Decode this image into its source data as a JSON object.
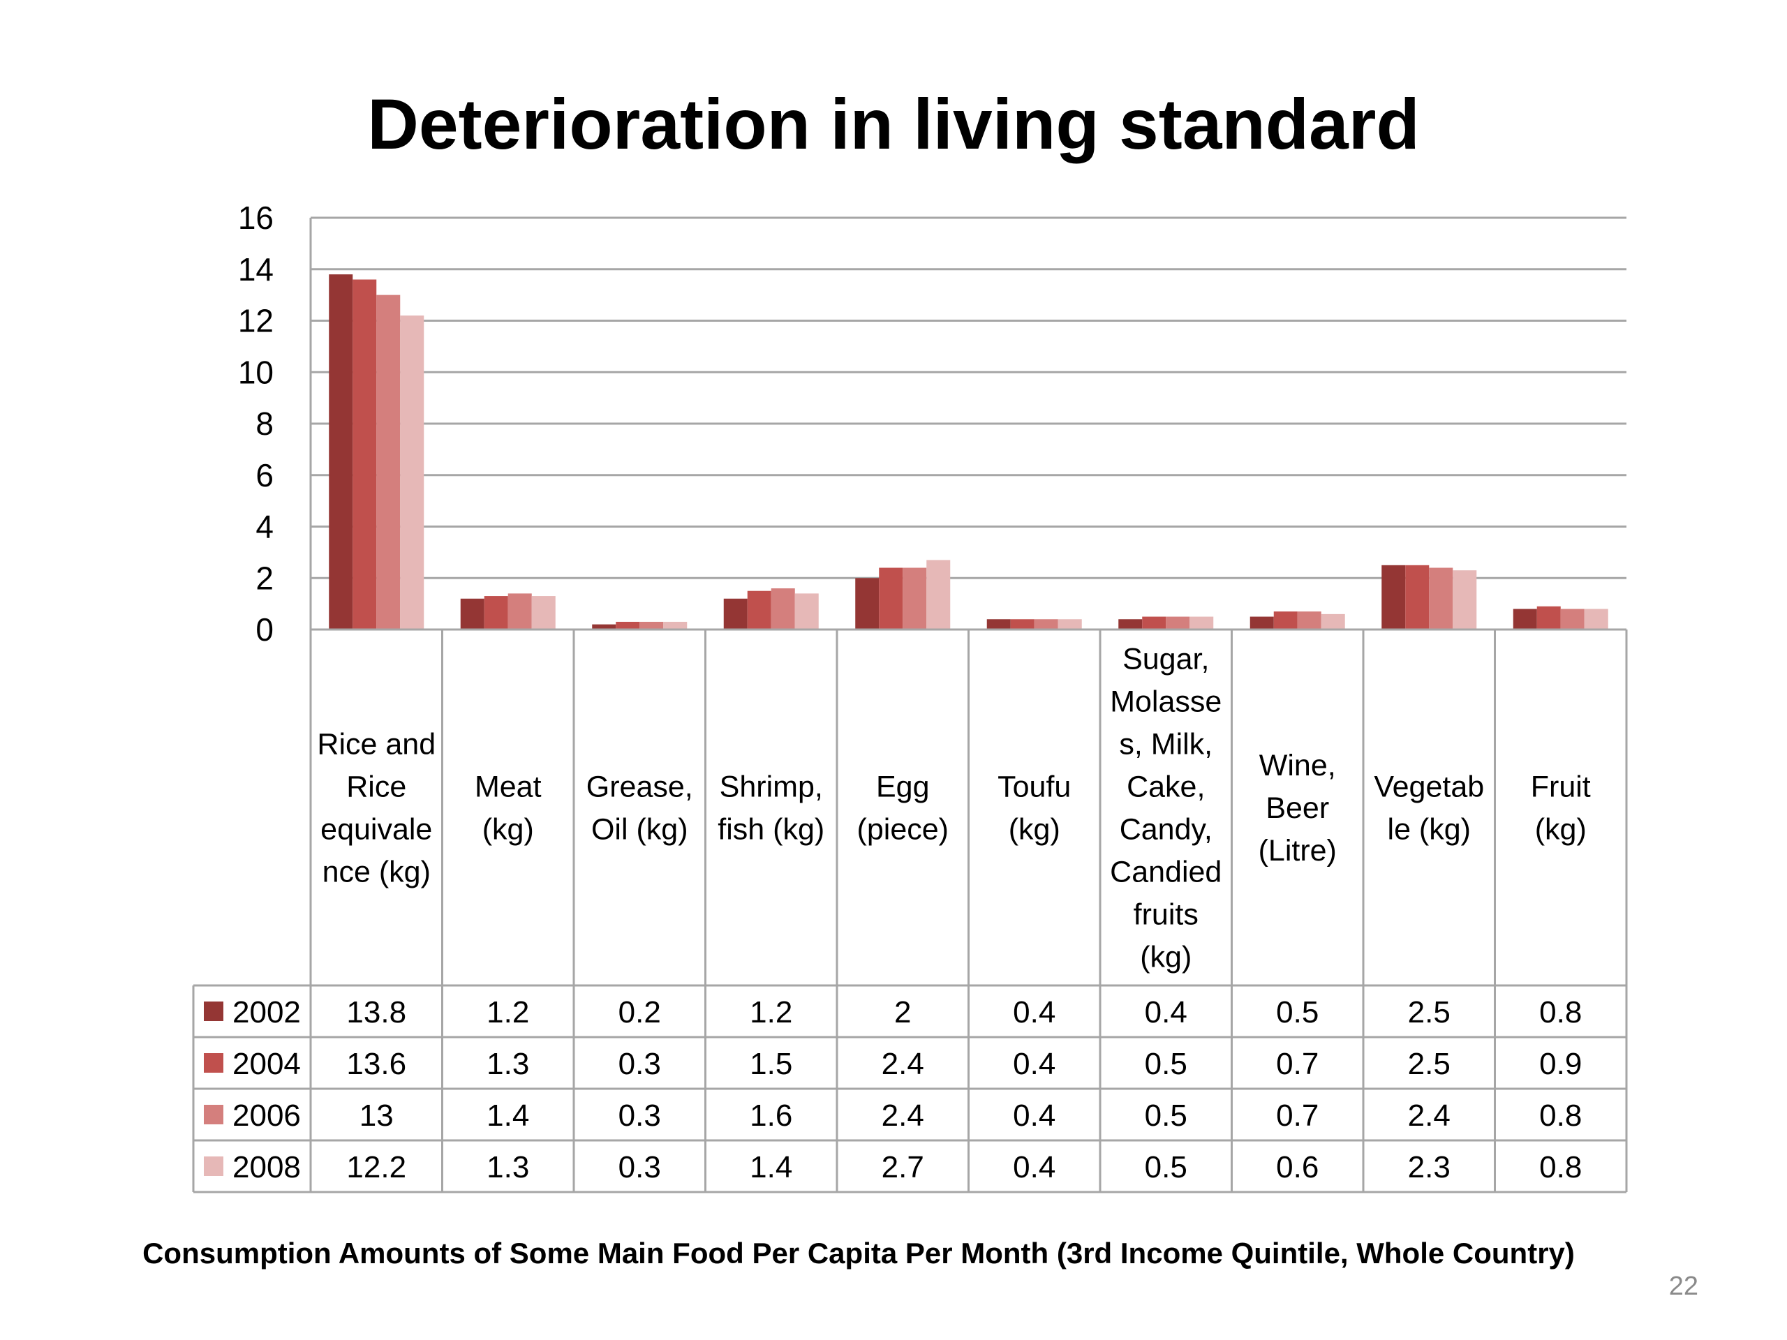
{
  "slide": {
    "title": "Deterioration in living standard",
    "caption": "Consumption Amounts of Some Main Food Per Capita Per Month (3rd Income Quintile, Whole Country)",
    "page_number": "22"
  },
  "chart_data": {
    "type": "bar",
    "title": "",
    "xlabel": "",
    "ylabel": "",
    "ylim": [
      0,
      16
    ],
    "y_ticks": [
      0,
      2,
      4,
      6,
      8,
      10,
      12,
      14,
      16
    ],
    "grid": true,
    "legend": "data-table-left",
    "categories": [
      [
        "Rice and",
        "Rice",
        "equivale",
        "nce (kg)"
      ],
      [
        "Meat",
        "(kg)"
      ],
      [
        "Grease,",
        "Oil (kg)"
      ],
      [
        "Shrimp,",
        "fish (kg)"
      ],
      [
        "Egg",
        "(piece)"
      ],
      [
        "Toufu",
        "(kg)"
      ],
      [
        "Sugar,",
        "Molasse",
        "s, Milk,",
        "Cake,",
        "Candy,",
        "Candied",
        "fruits",
        "(kg)"
      ],
      [
        "Wine,",
        "Beer",
        "(Litre)"
      ],
      [
        "Vegetab",
        "le (kg)"
      ],
      [
        "Fruit",
        "(kg)"
      ]
    ],
    "series": [
      {
        "name": "2002",
        "color": "#943634",
        "values": [
          13.8,
          1.2,
          0.2,
          1.2,
          2,
          0.4,
          0.4,
          0.5,
          2.5,
          0.8
        ],
        "labels": [
          "13.8",
          "1.2",
          "0.2",
          "1.2",
          "2",
          "0.4",
          "0.4",
          "0.5",
          "2.5",
          "0.8"
        ]
      },
      {
        "name": "2004",
        "color": "#c0504d",
        "values": [
          13.6,
          1.3,
          0.3,
          1.5,
          2.4,
          0.4,
          0.5,
          0.7,
          2.5,
          0.9
        ],
        "labels": [
          "13.6",
          "1.3",
          "0.3",
          "1.5",
          "2.4",
          "0.4",
          "0.5",
          "0.7",
          "2.5",
          "0.9"
        ]
      },
      {
        "name": "2006",
        "color": "#d47f7d",
        "values": [
          13,
          1.4,
          0.3,
          1.6,
          2.4,
          0.4,
          0.5,
          0.7,
          2.4,
          0.8
        ],
        "labels": [
          "13",
          "1.4",
          "0.3",
          "1.6",
          "2.4",
          "0.4",
          "0.5",
          "0.7",
          "2.4",
          "0.8"
        ]
      },
      {
        "name": "2008",
        "color": "#e6b8b7",
        "values": [
          12.2,
          1.3,
          0.3,
          1.4,
          2.7,
          0.4,
          0.5,
          0.6,
          2.3,
          0.8
        ],
        "labels": [
          "12.2",
          "1.3",
          "0.3",
          "1.4",
          "2.7",
          "0.4",
          "0.5",
          "0.6",
          "2.3",
          "0.8"
        ]
      }
    ]
  }
}
